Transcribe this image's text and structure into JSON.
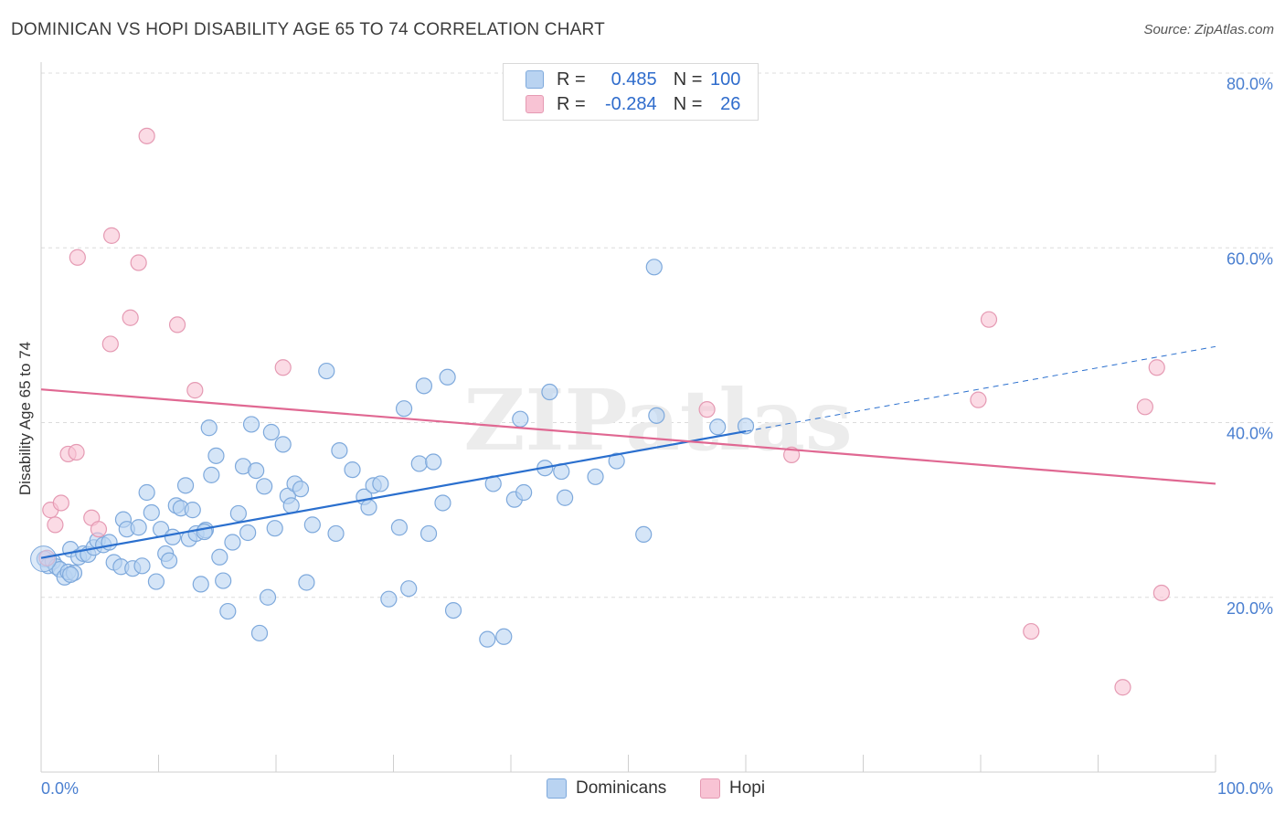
{
  "title": "DOMINICAN VS HOPI DISABILITY AGE 65 TO 74 CORRELATION CHART",
  "source": "Source: ZipAtlas.com",
  "watermark": "ZIPatlas",
  "legend": {
    "rows": [
      {
        "r_label": "R =",
        "r_value": "0.485",
        "n_label": "N =",
        "n_value": "100"
      },
      {
        "r_label": "R =",
        "r_value": "-0.284",
        "n_label": "N =",
        "n_value": "26"
      }
    ]
  },
  "colors": {
    "blue_fill": "#b9d3f1",
    "blue_stroke": "#7ea9dc",
    "blue_line": "#2a6fce",
    "pink_fill": "#f8c3d4",
    "pink_stroke": "#e59ab3",
    "pink_line": "#e06892",
    "axis_label": "#4a7fd0",
    "grid": "#dcdcdc"
  },
  "chart_data": {
    "type": "scatter",
    "title": "DOMINICAN VS HOPI DISABILITY AGE 65 TO 74 CORRELATION CHART",
    "xlabel": "",
    "ylabel": "Disability Age 65 to 74",
    "xlim": [
      0,
      100
    ],
    "ylim": [
      0,
      80
    ],
    "x_tick_labels": [
      "0.0%",
      "100.0%"
    ],
    "y_tick_labels": [
      "20.0%",
      "40.0%",
      "60.0%",
      "80.0%"
    ],
    "y_ticks": [
      20,
      40,
      60,
      80
    ],
    "grid": "horizontal dashed",
    "legend_position": "top-center",
    "series": [
      {
        "name": "Dominicans",
        "color": "#b9d3f1",
        "points": [
          [
            0.3,
            24.4
          ],
          [
            0.6,
            23.6
          ],
          [
            1.0,
            24.1
          ],
          [
            1.3,
            23.5
          ],
          [
            1.6,
            23.2
          ],
          [
            2.0,
            22.3
          ],
          [
            2.3,
            22.9
          ],
          [
            2.5,
            25.5
          ],
          [
            2.8,
            22.8
          ],
          [
            3.2,
            24.6
          ],
          [
            3.6,
            25.0
          ],
          [
            4.0,
            24.9
          ],
          [
            4.5,
            25.7
          ],
          [
            4.8,
            26.5
          ],
          [
            5.3,
            26.0
          ],
          [
            5.8,
            26.3
          ],
          [
            6.2,
            24.0
          ],
          [
            6.8,
            23.5
          ],
          [
            7.0,
            28.9
          ],
          [
            7.3,
            27.8
          ],
          [
            7.8,
            23.3
          ],
          [
            8.3,
            28.0
          ],
          [
            8.6,
            23.6
          ],
          [
            9.0,
            32.0
          ],
          [
            9.4,
            29.7
          ],
          [
            9.8,
            21.8
          ],
          [
            10.2,
            27.8
          ],
          [
            10.6,
            25.0
          ],
          [
            10.9,
            24.2
          ],
          [
            11.2,
            26.9
          ],
          [
            11.5,
            30.5
          ],
          [
            11.9,
            30.2
          ],
          [
            12.3,
            32.8
          ],
          [
            12.6,
            26.7
          ],
          [
            12.9,
            30.0
          ],
          [
            13.2,
            27.3
          ],
          [
            13.6,
            21.5
          ],
          [
            14.0,
            27.7
          ],
          [
            14.3,
            39.4
          ],
          [
            14.5,
            34.0
          ],
          [
            14.9,
            36.2
          ],
          [
            15.2,
            24.6
          ],
          [
            15.5,
            21.9
          ],
          [
            15.9,
            18.4
          ],
          [
            16.3,
            26.3
          ],
          [
            16.8,
            29.6
          ],
          [
            17.2,
            35.0
          ],
          [
            17.6,
            27.4
          ],
          [
            17.9,
            39.8
          ],
          [
            18.3,
            34.5
          ],
          [
            18.6,
            15.9
          ],
          [
            19.0,
            32.7
          ],
          [
            19.3,
            20.0
          ],
          [
            19.6,
            38.9
          ],
          [
            19.9,
            27.9
          ],
          [
            20.6,
            37.5
          ],
          [
            21.0,
            31.6
          ],
          [
            21.3,
            30.5
          ],
          [
            21.6,
            33.0
          ],
          [
            22.1,
            32.4
          ],
          [
            22.6,
            21.7
          ],
          [
            23.1,
            28.3
          ],
          [
            24.3,
            45.9
          ],
          [
            25.1,
            27.3
          ],
          [
            25.4,
            36.8
          ],
          [
            26.5,
            34.6
          ],
          [
            27.5,
            31.5
          ],
          [
            27.9,
            30.3
          ],
          [
            28.3,
            32.8
          ],
          [
            28.9,
            33.0
          ],
          [
            29.6,
            19.8
          ],
          [
            30.5,
            28.0
          ],
          [
            30.9,
            41.6
          ],
          [
            31.3,
            21.0
          ],
          [
            32.2,
            35.3
          ],
          [
            32.6,
            44.2
          ],
          [
            33.0,
            27.3
          ],
          [
            33.4,
            35.5
          ],
          [
            34.2,
            30.8
          ],
          [
            34.6,
            45.2
          ],
          [
            35.1,
            18.5
          ],
          [
            38.0,
            15.2
          ],
          [
            38.5,
            33.0
          ],
          [
            39.4,
            15.5
          ],
          [
            40.3,
            31.2
          ],
          [
            40.8,
            40.4
          ],
          [
            41.1,
            32.0
          ],
          [
            42.9,
            34.8
          ],
          [
            43.3,
            43.5
          ],
          [
            44.3,
            34.4
          ],
          [
            44.6,
            31.4
          ],
          [
            47.2,
            33.8
          ],
          [
            49.0,
            35.6
          ],
          [
            51.3,
            27.2
          ],
          [
            52.4,
            40.8
          ],
          [
            52.2,
            57.8
          ],
          [
            57.6,
            39.5
          ],
          [
            60.0,
            39.6
          ],
          [
            2.5,
            22.6
          ],
          [
            13.9,
            27.5
          ]
        ]
      },
      {
        "name": "Hopi",
        "color": "#f8c3d4",
        "points": [
          [
            0.8,
            30.0
          ],
          [
            1.2,
            28.3
          ],
          [
            1.7,
            30.8
          ],
          [
            2.3,
            36.4
          ],
          [
            3.0,
            36.6
          ],
          [
            3.1,
            58.9
          ],
          [
            4.3,
            29.1
          ],
          [
            4.9,
            27.8
          ],
          [
            5.9,
            49.0
          ],
          [
            6.0,
            61.4
          ],
          [
            7.6,
            52.0
          ],
          [
            8.3,
            58.3
          ],
          [
            9.0,
            72.8
          ],
          [
            11.6,
            51.2
          ],
          [
            13.1,
            43.7
          ],
          [
            20.6,
            46.3
          ],
          [
            56.7,
            41.5
          ],
          [
            63.9,
            36.3
          ],
          [
            79.8,
            42.6
          ],
          [
            80.7,
            51.8
          ],
          [
            84.3,
            16.1
          ],
          [
            92.1,
            9.7
          ],
          [
            94.0,
            41.8
          ],
          [
            95.0,
            46.3
          ],
          [
            95.4,
            20.5
          ],
          [
            0.5,
            24.5
          ]
        ]
      }
    ],
    "trendlines": [
      {
        "series": "Dominicans",
        "x0": 0,
        "y0": 24.5,
        "x1": 60,
        "y1": 39.0,
        "dashed_to_x": 100,
        "dashed_to_y": 48.7
      },
      {
        "series": "Hopi",
        "x0": 0,
        "y0": 43.8,
        "x1": 100,
        "y1": 33.0
      }
    ]
  },
  "bottom_legend": [
    {
      "label": "Dominicans"
    },
    {
      "label": "Hopi"
    }
  ]
}
